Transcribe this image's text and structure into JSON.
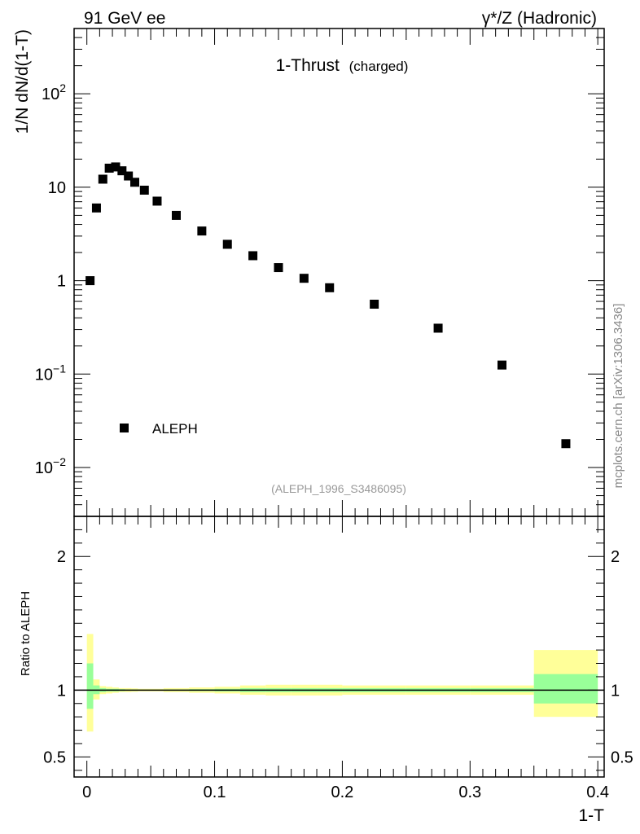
{
  "header": {
    "left_label": "91 GeV ee",
    "right_label": "γ*/Z (Hadronic)"
  },
  "side_label": "mcplots.cern.ch [arXiv:1306.3436]",
  "chart_data": [
    {
      "type": "scatter",
      "title": "1-Thrust",
      "subtitle": "(charged)",
      "ylabel": "1/N dN/d(1-T)",
      "xlabel": "",
      "yscale": "log",
      "xlim": [
        -0.01,
        0.405
      ],
      "ylim": [
        0.003,
        500
      ],
      "analysis_label": "(ALEPH_1996_S3486095)",
      "legend": {
        "placement": "bottom-left",
        "entries": [
          "ALEPH"
        ]
      },
      "ytick_labels": [
        "10^-2",
        "10^-1",
        "1",
        "10",
        "10^2"
      ],
      "series": [
        {
          "name": "ALEPH",
          "x": [
            0.0025,
            0.0075,
            0.0125,
            0.0175,
            0.0225,
            0.0275,
            0.0325,
            0.0375,
            0.045,
            0.055,
            0.07,
            0.09,
            0.11,
            0.13,
            0.15,
            0.17,
            0.19,
            0.225,
            0.275,
            0.325,
            0.375
          ],
          "y": [
            1.0,
            6.0,
            12.2,
            16.0,
            16.5,
            15.0,
            13.2,
            11.3,
            9.3,
            7.1,
            5.0,
            3.4,
            2.45,
            1.85,
            1.38,
            1.06,
            0.84,
            0.56,
            0.31,
            0.125,
            0.018
          ]
        }
      ]
    },
    {
      "type": "area",
      "ylabel": "Ratio to ALEPH",
      "xlabel": "1-T",
      "xlim": [
        -0.01,
        0.405
      ],
      "ylim": [
        0.35,
        2.3
      ],
      "xtick_labels": [
        "0",
        "0.1",
        "0.2",
        "0.3",
        "0.4"
      ],
      "ytick_labels": [
        "0.5",
        "1",
        "2"
      ],
      "reference_line": 1,
      "bands": {
        "bins": [
          [
            0.0,
            0.005
          ],
          [
            0.005,
            0.01
          ],
          [
            0.01,
            0.015
          ],
          [
            0.015,
            0.02
          ],
          [
            0.02,
            0.025
          ],
          [
            0.025,
            0.03
          ],
          [
            0.03,
            0.035
          ],
          [
            0.035,
            0.04
          ],
          [
            0.04,
            0.05
          ],
          [
            0.05,
            0.06
          ],
          [
            0.06,
            0.08
          ],
          [
            0.08,
            0.1
          ],
          [
            0.1,
            0.12
          ],
          [
            0.12,
            0.14
          ],
          [
            0.14,
            0.16
          ],
          [
            0.16,
            0.18
          ],
          [
            0.18,
            0.2
          ],
          [
            0.2,
            0.25
          ],
          [
            0.25,
            0.3
          ],
          [
            0.3,
            0.35
          ],
          [
            0.35,
            0.4
          ]
        ],
        "stat_lo": [
          0.86,
          0.97,
          0.985,
          0.99,
          0.99,
          0.993,
          0.995,
          0.995,
          0.997,
          0.997,
          0.995,
          0.993,
          0.99,
          0.985,
          0.985,
          0.985,
          0.985,
          0.985,
          0.985,
          0.985,
          0.9
        ],
        "stat_hi": [
          1.2,
          1.035,
          1.015,
          1.01,
          1.01,
          1.007,
          1.005,
          1.005,
          1.003,
          1.003,
          1.005,
          1.007,
          1.01,
          1.015,
          1.015,
          1.015,
          1.015,
          1.015,
          1.015,
          1.015,
          1.12
        ],
        "tot_lo": [
          0.69,
          0.93,
          0.97,
          0.975,
          0.98,
          0.985,
          0.985,
          0.987,
          0.99,
          0.99,
          0.985,
          0.98,
          0.975,
          0.965,
          0.96,
          0.96,
          0.96,
          0.965,
          0.965,
          0.965,
          0.8
        ],
        "tot_hi": [
          1.42,
          1.08,
          1.03,
          1.025,
          1.02,
          1.015,
          1.015,
          1.013,
          1.01,
          1.01,
          1.015,
          1.02,
          1.025,
          1.035,
          1.04,
          1.04,
          1.04,
          1.035,
          1.035,
          1.035,
          1.3
        ]
      },
      "colors": {
        "stat": "#99ff99",
        "total": "#ffff99",
        "marker": "#000000"
      }
    }
  ]
}
